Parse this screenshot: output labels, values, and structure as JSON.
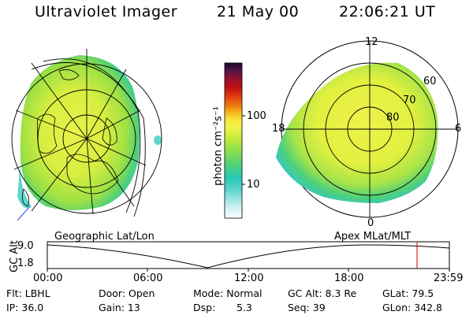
{
  "header": {
    "instrument": "Ultraviolet Imager",
    "date": "21 May 00",
    "time": "22:06:21 UT"
  },
  "colorbar": {
    "unit_label": "photon cm⁻²s⁻¹",
    "tick_100": "100",
    "tick_10": "10",
    "stops": [
      "#ffffff",
      "#c8eef2",
      "#5fd6cc",
      "#28c8b8",
      "#4ed07a",
      "#8ee04a",
      "#c6ec3a",
      "#eef24a",
      "#f8e83a",
      "#f6b820",
      "#f08010",
      "#e04010",
      "#c01010",
      "#901030",
      "#501848",
      "#200830"
    ]
  },
  "geo_map": {
    "label": "Geographic Lat/Lon"
  },
  "polar_plot": {
    "label": "Apex MLat/MLT",
    "mlt_labels": {
      "top": "12",
      "left": "18",
      "right": "6",
      "bottom": "0"
    },
    "lat_labels": [
      "60",
      "70",
      "80"
    ]
  },
  "altitude_plot": {
    "ylabel": "GC Alt",
    "y_ticks": [
      "9.0",
      "1.8"
    ],
    "x_ticks": [
      "00:00",
      "06:00",
      "12:00",
      "18:00",
      "23:59"
    ],
    "marker_color": "#cc0000"
  },
  "footer": {
    "flt": "Flt: LBHL",
    "ip": "IP: 36.0",
    "door": "Door: Open",
    "gain": "Gain: 13",
    "mode": "Mode: Normal",
    "dsp_label": "Dsp:",
    "dsp_value": "5.3",
    "gc_alt": "GC Alt: 8.3 Re",
    "seq": "Seq: 39",
    "glat": "GLat: 79.5",
    "glon": "GLon: 342.8"
  }
}
